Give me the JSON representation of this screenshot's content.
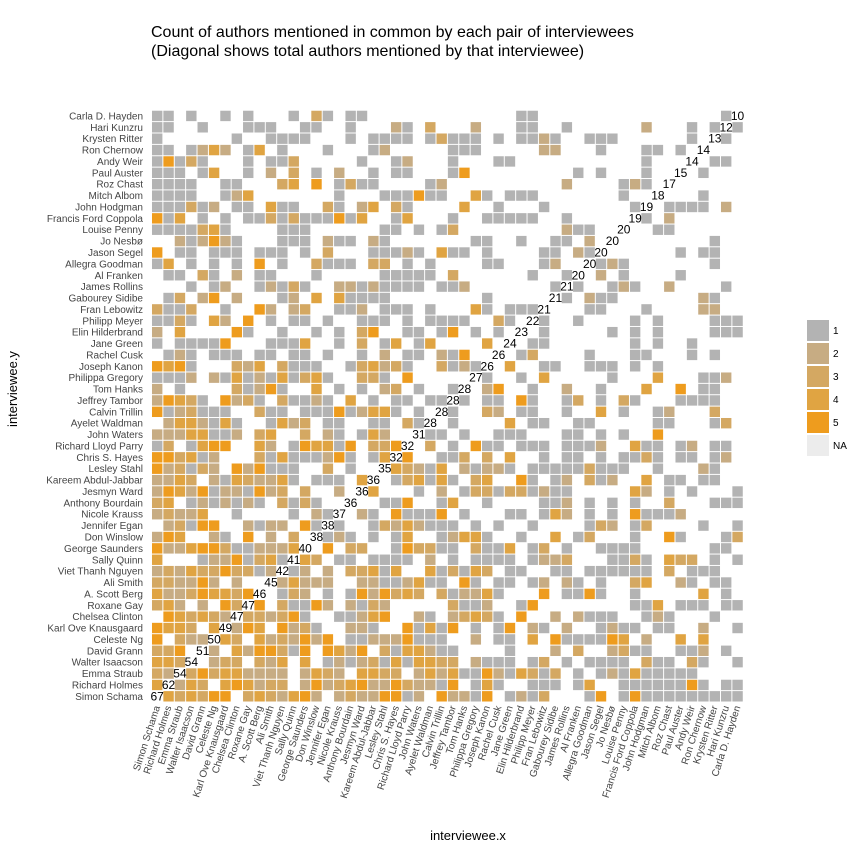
{
  "chart_data": {
    "type": "heatmap",
    "title": [
      "Count of authors mentioned in common by each pair of interviewees",
      "(Diagonal shows total authors mentioned by that interviewee)"
    ],
    "xlabel": "interviewee.x",
    "ylabel": "interviewee.y",
    "interviewees": [
      "Simon Schama",
      "Richard   Holmes",
      "Emma Straub",
      "Walter Isaacson",
      "David Grann",
      "Celeste Ng",
      "Karl Ove Knausgaard",
      "Chelsea Clinton",
      "Roxane Gay",
      "A. Scott Berg",
      "Ali Smith",
      "Viet  Thanh Nguyen",
      "Sally Quinn",
      "George Saunders",
      "Don Winslow",
      "Jennifer Egan",
      "Nicole Krauss",
      "Anthony Bourdain",
      "Jesmyn Ward",
      "Kareem Abdul-Jabbar",
      "Lesley Stahl",
      "Chris S. Hayes",
      "Richard Lloyd Parry",
      "John Waters",
      "Ayelet Waldman",
      "Calvin Trillin",
      "Jeffrey Tambor",
      "Tom Hanks",
      "Philippa Gregory",
      "Joseph Kanon",
      "Rachel Cusk",
      "Jane Green",
      "Elin Hilderbrand",
      "Philipp    Meyer",
      "Fran Lebowitz",
      "Gabourey Sidibe",
      "James Rollins",
      "Al Franken",
      "Allegra Goodman",
      "Jason Segel",
      "Jo Nesbø",
      "Louise Penny",
      "Francis Ford Coppola",
      "John Hodgman",
      "Mitch Albom",
      "Roz Chast",
      "Paul Auster",
      "Andy Weir",
      "Ron Chernow",
      "Krysten Ritter",
      "Hari Kunzru",
      "Carla D. Hayden"
    ],
    "diagonal_totals": [
      67,
      62,
      54,
      54,
      51,
      50,
      49,
      47,
      47,
      46,
      45,
      42,
      41,
      40,
      38,
      38,
      37,
      36,
      36,
      36,
      35,
      32,
      32,
      31,
      28,
      28,
      28,
      28,
      27,
      26,
      26,
      24,
      23,
      22,
      21,
      21,
      21,
      20,
      20,
      20,
      20,
      20,
      19,
      19,
      18,
      17,
      15,
      14,
      14,
      13,
      12,
      10
    ],
    "legend": {
      "levels": [
        "1",
        "2",
        "3",
        "4",
        "5",
        "NA"
      ],
      "colors": [
        "#b3b3b3",
        "#c7ac83",
        "#d4a862",
        "#e0a442",
        "#ee9c1e",
        "#ececec"
      ]
    },
    "matrix_seed": 20240517
  }
}
